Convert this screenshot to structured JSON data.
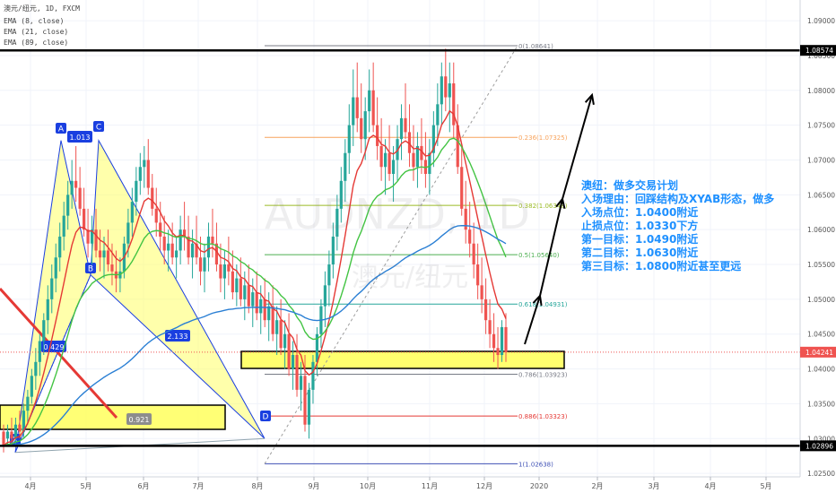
{
  "header": {
    "title": "澳元/纽元, 1D, FXCM",
    "indicators": [
      "EMA (8, close)",
      "EMA (21, close)",
      "EMA (89, close)"
    ]
  },
  "watermark": {
    "symbol": "AUDNZD, 1D",
    "name": "澳元/纽元"
  },
  "plan_text": [
    "澳纽：做多交易计划",
    "入场理由：回踩结构及XYAB形态，做多",
    "入场点位：1.0400附近",
    "止损点位：1.0330下方",
    "第一目标：1.0490附近",
    "第二目标：1.0630附近",
    "第三目标：1.0800附近甚至更远"
  ],
  "colors": {
    "bull": "#26a69a",
    "bear": "#ef5350",
    "ema8": "#e53935",
    "ema21": "#43c443",
    "ema89": "#2a7fd4",
    "harmonic": "#1a3fe0",
    "zone": "#ffff66",
    "plan": "#1e90ff"
  },
  "chart_data": {
    "type": "candlestick",
    "ylim": [
      1.0245,
      1.0922
    ],
    "x_labels": [
      "4月",
      "5月",
      "6月",
      "7月",
      "8月",
      "9月",
      "10月",
      "11月",
      "12月",
      "2020",
      "2月",
      "3月",
      "4月",
      "5月"
    ],
    "y_ticks": [
      "1.09000",
      "1.08500",
      "1.08000",
      "1.07500",
      "1.07000",
      "1.06500",
      "1.06000",
      "1.05500",
      "1.05000",
      "1.04500",
      "1.04000",
      "1.03500",
      "1.03000",
      "1.02500"
    ],
    "current_price": "1.04241",
    "horizontal_levels": [
      "1.08574",
      "1.02896"
    ],
    "fibonacci": [
      {
        "label": "0(1.08641)",
        "value": 1.08641,
        "color": "#787b86"
      },
      {
        "label": "0.236(1.07325)",
        "value": 1.07325,
        "color": "#f7a35c"
      },
      {
        "label": "0.382(1.06348)",
        "value": 1.06348,
        "color": "#9bbb24"
      },
      {
        "label": "0.5(1.05640)",
        "value": 1.0564,
        "color": "#4caf50"
      },
      {
        "label": "0.618(1.04931)",
        "value": 1.04931,
        "color": "#26a69a"
      },
      {
        "label": "0.786(1.03923)",
        "value": 1.03923,
        "color": "#787b86"
      },
      {
        "label": "0.886(1.03323)",
        "value": 1.03323,
        "color": "#e53935"
      },
      {
        "label": "1(1.02638)",
        "value": 1.02638,
        "color": "#3f51b5"
      }
    ],
    "harmonic_points": [
      {
        "label": "X",
        "value": 1.028
      },
      {
        "label": "A",
        "value": 1.0728
      },
      {
        "label": "B",
        "value": 1.0535
      },
      {
        "label": "C",
        "value": 1.0728
      },
      {
        "label": "D",
        "value": 1.03
      }
    ],
    "ratios": [
      "1.013",
      "0.429",
      "2.133",
      "0.921"
    ],
    "ohlc": [
      [
        1.031,
        1.032,
        1.028,
        1.029
      ],
      [
        1.03,
        1.032,
        1.029,
        1.031
      ],
      [
        1.031,
        1.033,
        1.029,
        1.03
      ],
      [
        1.03,
        1.033,
        1.029,
        1.032
      ],
      [
        1.032,
        1.034,
        1.03,
        1.031
      ],
      [
        1.031,
        1.035,
        1.03,
        1.034
      ],
      [
        1.034,
        1.037,
        1.032,
        1.036
      ],
      [
        1.036,
        1.04,
        1.035,
        1.039
      ],
      [
        1.039,
        1.043,
        1.037,
        1.041
      ],
      [
        1.041,
        1.045,
        1.039,
        1.044
      ],
      [
        1.044,
        1.048,
        1.042,
        1.047
      ],
      [
        1.047,
        1.052,
        1.045,
        1.05
      ],
      [
        1.05,
        1.055,
        1.048,
        1.053
      ],
      [
        1.053,
        1.058,
        1.051,
        1.056
      ],
      [
        1.056,
        1.061,
        1.054,
        1.059
      ],
      [
        1.059,
        1.064,
        1.057,
        1.062
      ],
      [
        1.062,
        1.067,
        1.06,
        1.065
      ],
      [
        1.065,
        1.07,
        1.063,
        1.067
      ],
      [
        1.067,
        1.072,
        1.064,
        1.066
      ],
      [
        1.066,
        1.069,
        1.062,
        1.063
      ],
      [
        1.063,
        1.066,
        1.059,
        1.06
      ],
      [
        1.06,
        1.063,
        1.056,
        1.058
      ],
      [
        1.058,
        1.062,
        1.055,
        1.06
      ],
      [
        1.06,
        1.063,
        1.056,
        1.057
      ],
      [
        1.057,
        1.06,
        1.054,
        1.056
      ],
      [
        1.056,
        1.059,
        1.053,
        1.057
      ],
      [
        1.057,
        1.06,
        1.054,
        1.055
      ],
      [
        1.055,
        1.058,
        1.052,
        1.054
      ],
      [
        1.054,
        1.057,
        1.051,
        1.053
      ],
      [
        1.053,
        1.056,
        1.051,
        1.054
      ],
      [
        1.054,
        1.059,
        1.053,
        1.058
      ],
      [
        1.058,
        1.063,
        1.056,
        1.061
      ],
      [
        1.061,
        1.066,
        1.059,
        1.064
      ],
      [
        1.064,
        1.069,
        1.062,
        1.067
      ],
      [
        1.067,
        1.071,
        1.065,
        1.069
      ],
      [
        1.069,
        1.072,
        1.066,
        1.07
      ],
      [
        1.07,
        1.073,
        1.065,
        1.066
      ],
      [
        1.066,
        1.068,
        1.062,
        1.063
      ],
      [
        1.063,
        1.066,
        1.059,
        1.061
      ],
      [
        1.061,
        1.064,
        1.057,
        1.059
      ],
      [
        1.059,
        1.062,
        1.055,
        1.057
      ],
      [
        1.057,
        1.06,
        1.054,
        1.058
      ],
      [
        1.058,
        1.061,
        1.055,
        1.056
      ],
      [
        1.056,
        1.059,
        1.053,
        1.057
      ],
      [
        1.057,
        1.062,
        1.055,
        1.06
      ],
      [
        1.06,
        1.064,
        1.057,
        1.059
      ],
      [
        1.059,
        1.062,
        1.055,
        1.056
      ],
      [
        1.056,
        1.06,
        1.053,
        1.058
      ],
      [
        1.058,
        1.062,
        1.055,
        1.056
      ],
      [
        1.056,
        1.059,
        1.052,
        1.054
      ],
      [
        1.054,
        1.058,
        1.051,
        1.056
      ],
      [
        1.056,
        1.061,
        1.054,
        1.059
      ],
      [
        1.059,
        1.063,
        1.056,
        1.058
      ],
      [
        1.058,
        1.061,
        1.054,
        1.055
      ],
      [
        1.055,
        1.058,
        1.051,
        1.053
      ],
      [
        1.053,
        1.057,
        1.05,
        1.055
      ],
      [
        1.055,
        1.059,
        1.052,
        1.054
      ],
      [
        1.054,
        1.057,
        1.05,
        1.051
      ],
      [
        1.051,
        1.055,
        1.049,
        1.053
      ],
      [
        1.053,
        1.056,
        1.049,
        1.05
      ],
      [
        1.05,
        1.054,
        1.047,
        1.052
      ],
      [
        1.052,
        1.055,
        1.048,
        1.049
      ],
      [
        1.049,
        1.053,
        1.046,
        1.051
      ],
      [
        1.051,
        1.054,
        1.047,
        1.048
      ],
      [
        1.048,
        1.052,
        1.045,
        1.05
      ],
      [
        1.05,
        1.053,
        1.046,
        1.047
      ],
      [
        1.047,
        1.051,
        1.044,
        1.049
      ],
      [
        1.049,
        1.052,
        1.044,
        1.045
      ],
      [
        1.045,
        1.049,
        1.042,
        1.047
      ],
      [
        1.047,
        1.05,
        1.042,
        1.043
      ],
      [
        1.043,
        1.047,
        1.04,
        1.045
      ],
      [
        1.045,
        1.048,
        1.039,
        1.04
      ],
      [
        1.04,
        1.044,
        1.037,
        1.042
      ],
      [
        1.042,
        1.045,
        1.036,
        1.037
      ],
      [
        1.037,
        1.041,
        1.034,
        1.039
      ],
      [
        1.039,
        1.042,
        1.031,
        1.032
      ],
      [
        1.032,
        1.038,
        1.03,
        1.037
      ],
      [
        1.037,
        1.042,
        1.035,
        1.041
      ],
      [
        1.041,
        1.046,
        1.039,
        1.045
      ],
      [
        1.045,
        1.05,
        1.043,
        1.049
      ],
      [
        1.049,
        1.054,
        1.046,
        1.052
      ],
      [
        1.052,
        1.057,
        1.049,
        1.055
      ],
      [
        1.055,
        1.061,
        1.053,
        1.059
      ],
      [
        1.059,
        1.065,
        1.057,
        1.063
      ],
      [
        1.063,
        1.069,
        1.061,
        1.067
      ],
      [
        1.067,
        1.073,
        1.064,
        1.071
      ],
      [
        1.071,
        1.078,
        1.068,
        1.075
      ],
      [
        1.075,
        1.083,
        1.072,
        1.079
      ],
      [
        1.079,
        1.084,
        1.074,
        1.076
      ],
      [
        1.076,
        1.081,
        1.071,
        1.073
      ],
      [
        1.073,
        1.079,
        1.07,
        1.077
      ],
      [
        1.077,
        1.083,
        1.074,
        1.08
      ],
      [
        1.08,
        1.084,
        1.074,
        1.075
      ],
      [
        1.075,
        1.079,
        1.07,
        1.072
      ],
      [
        1.072,
        1.076,
        1.067,
        1.069
      ],
      [
        1.069,
        1.073,
        1.065,
        1.071
      ],
      [
        1.071,
        1.075,
        1.067,
        1.068
      ],
      [
        1.068,
        1.072,
        1.064,
        1.07
      ],
      [
        1.07,
        1.075,
        1.067,
        1.073
      ],
      [
        1.073,
        1.078,
        1.07,
        1.076
      ],
      [
        1.076,
        1.081,
        1.073,
        1.074
      ],
      [
        1.074,
        1.078,
        1.069,
        1.071
      ],
      [
        1.071,
        1.075,
        1.067,
        1.069
      ],
      [
        1.069,
        1.074,
        1.066,
        1.072
      ],
      [
        1.072,
        1.076,
        1.068,
        1.07
      ],
      [
        1.07,
        1.074,
        1.066,
        1.068
      ],
      [
        1.068,
        1.073,
        1.065,
        1.071
      ],
      [
        1.071,
        1.077,
        1.069,
        1.075
      ],
      [
        1.075,
        1.081,
        1.072,
        1.078
      ],
      [
        1.078,
        1.084,
        1.075,
        1.082
      ],
      [
        1.082,
        1.086,
        1.077,
        1.079
      ],
      [
        1.079,
        1.084,
        1.074,
        1.081
      ],
      [
        1.081,
        1.084,
        1.073,
        1.075
      ],
      [
        1.075,
        1.078,
        1.068,
        1.069
      ],
      [
        1.069,
        1.072,
        1.062,
        1.063
      ],
      [
        1.063,
        1.067,
        1.058,
        1.06
      ],
      [
        1.06,
        1.064,
        1.056,
        1.058
      ],
      [
        1.058,
        1.061,
        1.053,
        1.055
      ],
      [
        1.055,
        1.058,
        1.05,
        1.052
      ],
      [
        1.052,
        1.056,
        1.048,
        1.05
      ],
      [
        1.05,
        1.053,
        1.045,
        1.047
      ],
      [
        1.047,
        1.05,
        1.043,
        1.045
      ],
      [
        1.045,
        1.048,
        1.041,
        1.043
      ],
      [
        1.043,
        1.046,
        1.04,
        1.042
      ],
      [
        1.042,
        1.047,
        1.041,
        1.046
      ],
      [
        1.046,
        1.048,
        1.041,
        1.0424
      ]
    ],
    "ema8_source": "close",
    "ema21_source": "close",
    "ema89_source": "close"
  }
}
